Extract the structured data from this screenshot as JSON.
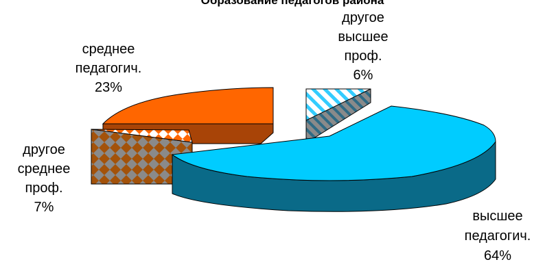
{
  "chart_data": {
    "type": "pie",
    "title": "Образование педагогов района",
    "slices": [
      {
        "name": "высшее педагогич.",
        "line1": "высшее",
        "line2": "педагогич.",
        "value": 64,
        "pct_label": "64%",
        "color": "#00CCFF",
        "pattern": "solid"
      },
      {
        "name": "другое среднее проф.",
        "line1": "другое",
        "line2": "среднее",
        "line3": "проф.",
        "value": 7,
        "pct_label": "7%",
        "color": "#FF6600",
        "pattern": "diamond-checker"
      },
      {
        "name": "среднее педагогич.",
        "line1": "среднее",
        "line2": "педагогич.",
        "value": 23,
        "pct_label": "23%",
        "color": "#FF6600",
        "pattern": "solid"
      },
      {
        "name": "другое высшее проф.",
        "line1": "другое",
        "line2": "высшее",
        "line3": "проф.",
        "value": 6,
        "pct_label": "6%",
        "color": "#33CCFF",
        "pattern": "diagonal-stripes"
      }
    ]
  }
}
